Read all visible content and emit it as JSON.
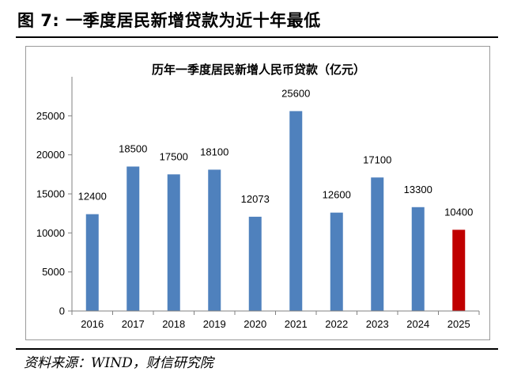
{
  "figure": {
    "title": "图 7:  一季度居民新增贷款为近十年最低",
    "source": "资料来源：WIND，财信研究院"
  },
  "colors": {
    "bar": "#4f81bd",
    "highlight": "#c00000",
    "axis": "#808080",
    "text": "#000000"
  },
  "chart_data": {
    "type": "bar",
    "title": "历年一季度居民新增人民币贷款（亿元）",
    "xlabel": "",
    "ylabel": "",
    "categories": [
      "2016",
      "2017",
      "2018",
      "2019",
      "2020",
      "2021",
      "2022",
      "2023",
      "2024",
      "2025"
    ],
    "values": [
      12400,
      18500,
      17500,
      18100,
      12073,
      25600,
      12600,
      17100,
      13300,
      10400
    ],
    "data_labels": [
      "12400",
      "18500",
      "17500",
      "18100",
      "12073",
      "25600",
      "12600",
      "17100",
      "13300",
      "10400"
    ],
    "highlight_index": 9,
    "ylim": [
      0,
      30000
    ],
    "yticks": [
      0,
      5000,
      10000,
      15000,
      20000,
      25000
    ],
    "grid": false,
    "legend": "none"
  }
}
